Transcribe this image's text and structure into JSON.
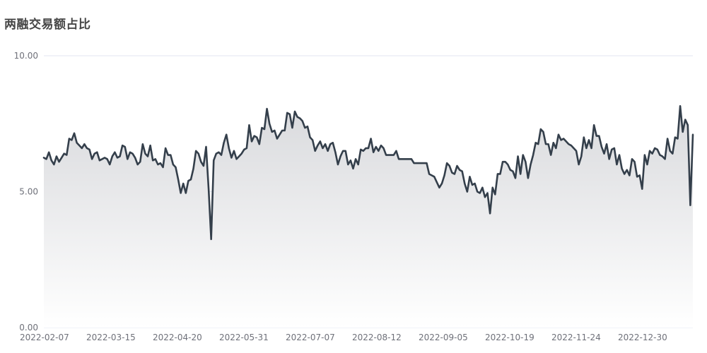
{
  "title": "两融交易额占比",
  "colors": {
    "line": "#343f4b",
    "grid": "#e0e6f1",
    "area_top": "#d9dadd",
    "area_bottom": "#ffffff",
    "axis_text": "#6e7079"
  },
  "chart_data": {
    "type": "area",
    "title": "两融交易额占比",
    "xlabel": "",
    "ylabel": "",
    "ylim": [
      0,
      10
    ],
    "grid": true,
    "legend": "none",
    "y_ticks": [
      "0.00",
      "5.00",
      "10.00"
    ],
    "x_ticks": [
      "2022-02-07",
      "2022-03-15",
      "2022-04-20",
      "2022-05-31",
      "2022-07-07",
      "2022-08-12",
      "2022-09-05",
      "2022-10-19",
      "2022-11-24",
      "2022-12-30"
    ],
    "series": [
      {
        "values": [
          6.25,
          6.2,
          6.45,
          6.15,
          6.0,
          6.3,
          6.1,
          6.25,
          6.4,
          6.35,
          6.95,
          6.9,
          7.15,
          6.8,
          6.7,
          6.6,
          6.75,
          6.6,
          6.55,
          6.2,
          6.4,
          6.45,
          6.15,
          6.2,
          6.25,
          6.2,
          6.0,
          6.3,
          6.45,
          6.25,
          6.3,
          6.7,
          6.65,
          6.2,
          6.45,
          6.4,
          6.25,
          6.0,
          6.1,
          6.75,
          6.4,
          6.3,
          6.7,
          6.15,
          6.2,
          6.0,
          6.05,
          5.9,
          6.6,
          6.35,
          6.35,
          6.0,
          5.9,
          5.45,
          4.95,
          5.3,
          4.95,
          5.4,
          5.45,
          5.85,
          6.5,
          6.4,
          6.1,
          5.95,
          6.65,
          5.1,
          3.25,
          6.15,
          6.4,
          6.45,
          6.35,
          6.8,
          7.1,
          6.6,
          6.25,
          6.5,
          6.2,
          6.3,
          6.4,
          6.55,
          6.6,
          7.45,
          6.85,
          7.05,
          7.0,
          6.75,
          7.35,
          7.3,
          8.05,
          7.5,
          7.2,
          7.25,
          6.95,
          7.1,
          7.25,
          7.25,
          7.9,
          7.85,
          7.35,
          7.95,
          7.75,
          7.7,
          7.6,
          7.35,
          7.4,
          7.0,
          6.9,
          6.5,
          6.7,
          6.85,
          6.6,
          6.75,
          6.5,
          6.75,
          6.8,
          6.45,
          6.0,
          6.3,
          6.5,
          6.5,
          6.0,
          6.15,
          5.85,
          6.2,
          6.0,
          6.55,
          6.5,
          6.6,
          6.6,
          6.95,
          6.45,
          6.65,
          6.5,
          6.7,
          6.6,
          6.35,
          6.35,
          6.35,
          6.35,
          6.5,
          6.2,
          6.2,
          6.2,
          6.2,
          6.2,
          6.2,
          6.05,
          6.05,
          6.05,
          6.05,
          6.05,
          6.05,
          5.65,
          5.6,
          5.55,
          5.35,
          5.15,
          5.3,
          5.6,
          6.05,
          5.95,
          5.7,
          5.65,
          5.95,
          5.8,
          5.75,
          5.3,
          5.0,
          5.55,
          5.25,
          5.3,
          5.0,
          4.95,
          5.15,
          4.8,
          4.95,
          4.2,
          5.15,
          4.9,
          5.65,
          5.65,
          6.1,
          6.1,
          6.0,
          5.8,
          5.75,
          5.5,
          6.3,
          5.65,
          6.35,
          6.1,
          5.5,
          6.0,
          6.35,
          6.8,
          6.75,
          7.3,
          7.2,
          6.75,
          6.75,
          6.35,
          6.8,
          6.6,
          7.1,
          6.9,
          6.95,
          6.85,
          6.75,
          6.7,
          6.6,
          6.5,
          6.0,
          6.3,
          7.0,
          6.6,
          6.9,
          6.6,
          7.45,
          7.05,
          7.05,
          6.65,
          6.4,
          6.75,
          6.2,
          6.55,
          6.6,
          6.0,
          6.35,
          5.85,
          5.65,
          5.8,
          5.6,
          6.2,
          6.1,
          5.55,
          5.6,
          5.1,
          6.35,
          6.0,
          6.5,
          6.4,
          6.6,
          6.55,
          6.35,
          6.3,
          6.2,
          6.95,
          6.5,
          6.4,
          7.0,
          6.95,
          8.15,
          7.2,
          7.65,
          7.45,
          4.5,
          7.1
        ]
      }
    ]
  }
}
